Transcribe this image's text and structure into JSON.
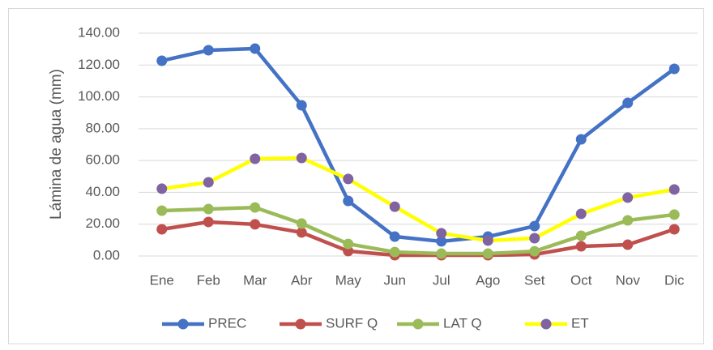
{
  "chart_data": {
    "type": "line",
    "y_label": "Lámina de agua (mm)",
    "categories": [
      "Ene",
      "Feb",
      "Mar",
      "Abr",
      "May",
      "Jun",
      "Jul",
      "Ago",
      "Set",
      "Oct",
      "Nov",
      "Dic"
    ],
    "series": [
      {
        "name": "PREC",
        "color": "#4472c4",
        "marker_color": "#4472c4",
        "values": [
          122.7,
          129.3,
          130.3,
          94.7,
          34.6,
          12.2,
          9.2,
          12.2,
          18.8,
          73.3,
          96.2,
          117.6
        ]
      },
      {
        "name": "SURF Q",
        "color": "#c0504d",
        "marker_color": "#c0504d",
        "values": [
          16.8,
          21.4,
          19.9,
          14.8,
          3.1,
          0.5,
          0.5,
          0.5,
          1.0,
          6.1,
          7.1,
          16.8
        ]
      },
      {
        "name": "LAT Q",
        "color": "#9bbb59",
        "marker_color": "#9bbb59",
        "values": [
          28.5,
          29.5,
          30.5,
          20.4,
          7.6,
          2.5,
          1.5,
          1.5,
          3.0,
          12.7,
          22.4,
          26.0
        ]
      },
      {
        "name": "ET",
        "color": "#ffff00",
        "marker_color": "#8064a2",
        "values": [
          42.3,
          46.3,
          61.1,
          61.6,
          48.4,
          31.0,
          14.3,
          9.7,
          11.2,
          26.5,
          36.7,
          41.8
        ]
      }
    ],
    "ylim": [
      0,
      140
    ],
    "yticks": [
      {
        "value": 0,
        "label": "0.00"
      },
      {
        "value": 20,
        "label": "20.00"
      },
      {
        "value": 40,
        "label": "40.00"
      },
      {
        "value": 60,
        "label": "60.00"
      },
      {
        "value": 80,
        "label": "80.00"
      },
      {
        "value": 100,
        "label": "100.00"
      },
      {
        "value": 120,
        "label": "120.00"
      },
      {
        "value": 140,
        "label": "140.00"
      }
    ],
    "grid": true,
    "legend": "bottom"
  }
}
